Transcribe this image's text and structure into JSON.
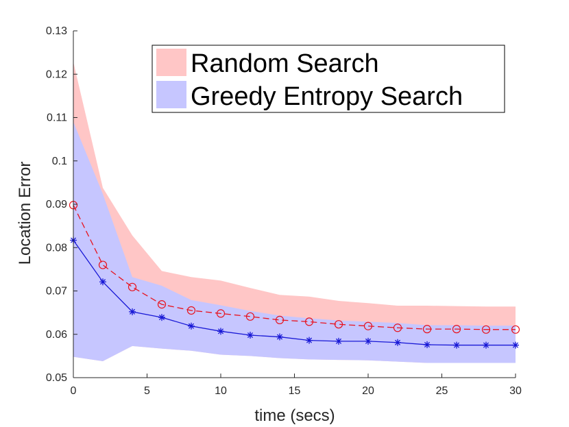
{
  "chart_data": {
    "type": "line",
    "xlabel": "time (secs)",
    "ylabel": "Location Error",
    "xlim": [
      0,
      30
    ],
    "ylim": [
      0.05,
      0.13
    ],
    "xticks": [
      0,
      5,
      10,
      15,
      20,
      25,
      30
    ],
    "yticks": [
      0.05,
      0.06,
      0.07,
      0.08,
      0.09,
      0.1,
      0.11,
      0.12,
      0.13
    ],
    "xtick_labels": [
      "0",
      "5",
      "10",
      "15",
      "20",
      "25",
      "30"
    ],
    "ytick_labels": [
      "0.05",
      "0.06",
      "0.07",
      "0.08",
      "0.09",
      "0.1",
      "0.11",
      "0.12",
      "0.13"
    ],
    "grid": false,
    "legend_position": "top-right",
    "x": [
      0,
      2,
      4,
      6,
      8,
      10,
      12,
      14,
      16,
      18,
      20,
      22,
      24,
      26,
      28,
      30
    ],
    "series": [
      {
        "name": "Random Search",
        "color": "#e8111b",
        "band_color": "#ffc6c6",
        "line_style": "dashed",
        "marker": "circle",
        "mean": [
          0.0898,
          0.076,
          0.0709,
          0.0669,
          0.0655,
          0.0648,
          0.0641,
          0.0633,
          0.0629,
          0.0623,
          0.0619,
          0.0615,
          0.0612,
          0.0612,
          0.0611,
          0.0611
        ],
        "upper": [
          0.1228,
          0.0938,
          0.0828,
          0.0746,
          0.0732,
          0.0724,
          0.0707,
          0.0691,
          0.0687,
          0.0677,
          0.0672,
          0.0666,
          0.0666,
          0.0665,
          0.0664,
          0.0664
        ],
        "lower": [
          0.0548,
          0.0538,
          0.0573,
          0.0567,
          0.0562,
          0.0553,
          0.055,
          0.0545,
          0.0542,
          0.0541,
          0.054,
          0.0537,
          0.0534,
          0.0534,
          0.0534,
          0.0534
        ]
      },
      {
        "name": "Greedy Entropy Search",
        "color": "#1818d6",
        "band_color": "#c6c6ff",
        "line_style": "solid",
        "marker": "asterisk",
        "mean": [
          0.0817,
          0.0721,
          0.0652,
          0.0639,
          0.0619,
          0.0607,
          0.0598,
          0.0594,
          0.0586,
          0.0584,
          0.0584,
          0.0581,
          0.0576,
          0.0575,
          0.0575,
          0.0575
        ],
        "upper": [
          0.109,
          0.0924,
          0.0732,
          0.0712,
          0.0679,
          0.0667,
          0.0654,
          0.0643,
          0.0637,
          0.0632,
          0.0629,
          0.0626,
          0.0621,
          0.0621,
          0.062,
          0.062
        ],
        "lower": [
          0.0548,
          0.0538,
          0.0573,
          0.0567,
          0.0562,
          0.0553,
          0.055,
          0.0545,
          0.0542,
          0.0541,
          0.054,
          0.0537,
          0.0534,
          0.0534,
          0.0534,
          0.0534
        ]
      }
    ]
  }
}
